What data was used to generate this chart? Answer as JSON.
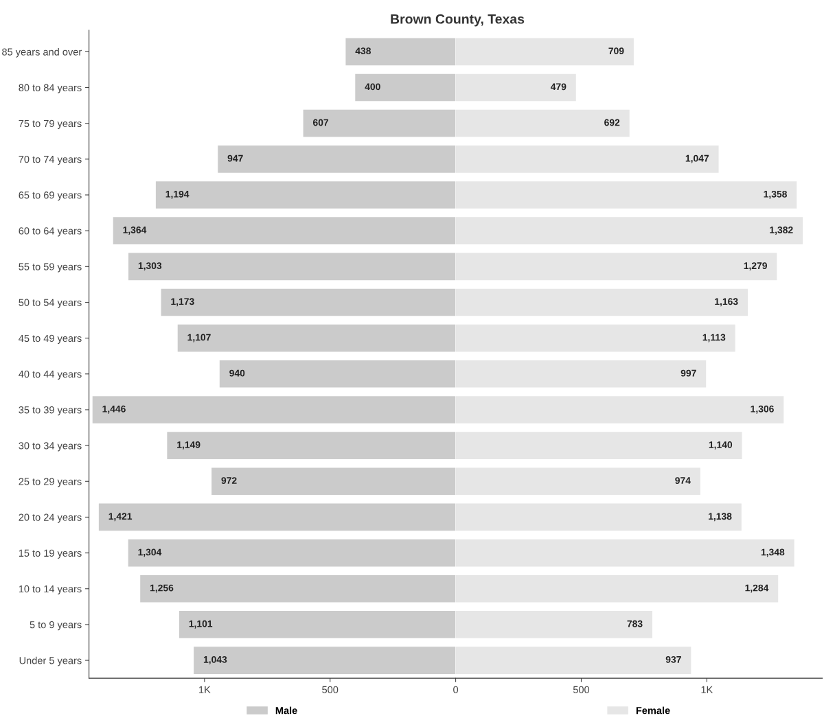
{
  "chart_data": [
    {
      "type": "bar",
      "orientation": "horizontal",
      "title": "Brown County, Texas",
      "categories": [
        "85 years and over",
        "80 to 84 years",
        "75 to 79 years",
        "70 to 74 years",
        "65 to 69 years",
        "60 to 64 years",
        "55 to 59 years",
        "50 to 54 years",
        "45 to 49 years",
        "40 to 44 years",
        "35 to 39 years",
        "30 to 34 years",
        "25 to 29 years",
        "20 to 24 years",
        "15 to 19 years",
        "10 to 14 years",
        "5 to 9 years",
        "Under 5 years"
      ],
      "series": [
        {
          "name": "Male",
          "color": "#cbcbcb",
          "values": [
            438,
            400,
            607,
            947,
            1194,
            1364,
            1303,
            1173,
            1107,
            940,
            1446,
            1149,
            972,
            1421,
            1304,
            1256,
            1101,
            1043
          ],
          "value_labels": [
            "438",
            "400",
            "607",
            "947",
            "1,194",
            "1,364",
            "1,303",
            "1,173",
            "1,107",
            "940",
            "1,446",
            "1,149",
            "972",
            "1,421",
            "1,304",
            "1,256",
            "1,101",
            "1,043"
          ]
        }
      ],
      "xlim": [
        1460,
        0
      ],
      "xticks": [
        {
          "value": 1000,
          "label": "1K"
        },
        500
      ],
      "legend": "bottom"
    },
    {
      "type": "bar",
      "orientation": "horizontal",
      "categories": [
        null,
        null,
        null,
        null,
        null,
        null,
        null,
        null,
        null,
        null,
        null,
        null,
        null,
        null,
        null,
        null,
        null,
        null
      ],
      "series": [
        {
          "name": "Female",
          "color": "#e6e6e6",
          "values": [
            709,
            479,
            692,
            1047,
            1358,
            1382,
            1279,
            1163,
            1113,
            997,
            1306,
            1140,
            974,
            1138,
            1348,
            1284,
            783,
            937
          ],
          "value_labels": [
            "709",
            "479",
            "692",
            "1,047",
            "1,358",
            "1,382",
            "1,279",
            "1,163",
            "1,113",
            "997",
            "1,306",
            "1,140",
            "974",
            "1,138",
            "1,348",
            "1,284",
            "783",
            "937"
          ]
        }
      ],
      "xlim": [
        0,
        1460
      ],
      "xticks": [
        0,
        500,
        {
          "value": 1000,
          "label": "1K"
        }
      ],
      "tick_labels": "x",
      "legend": "bottom"
    }
  ]
}
